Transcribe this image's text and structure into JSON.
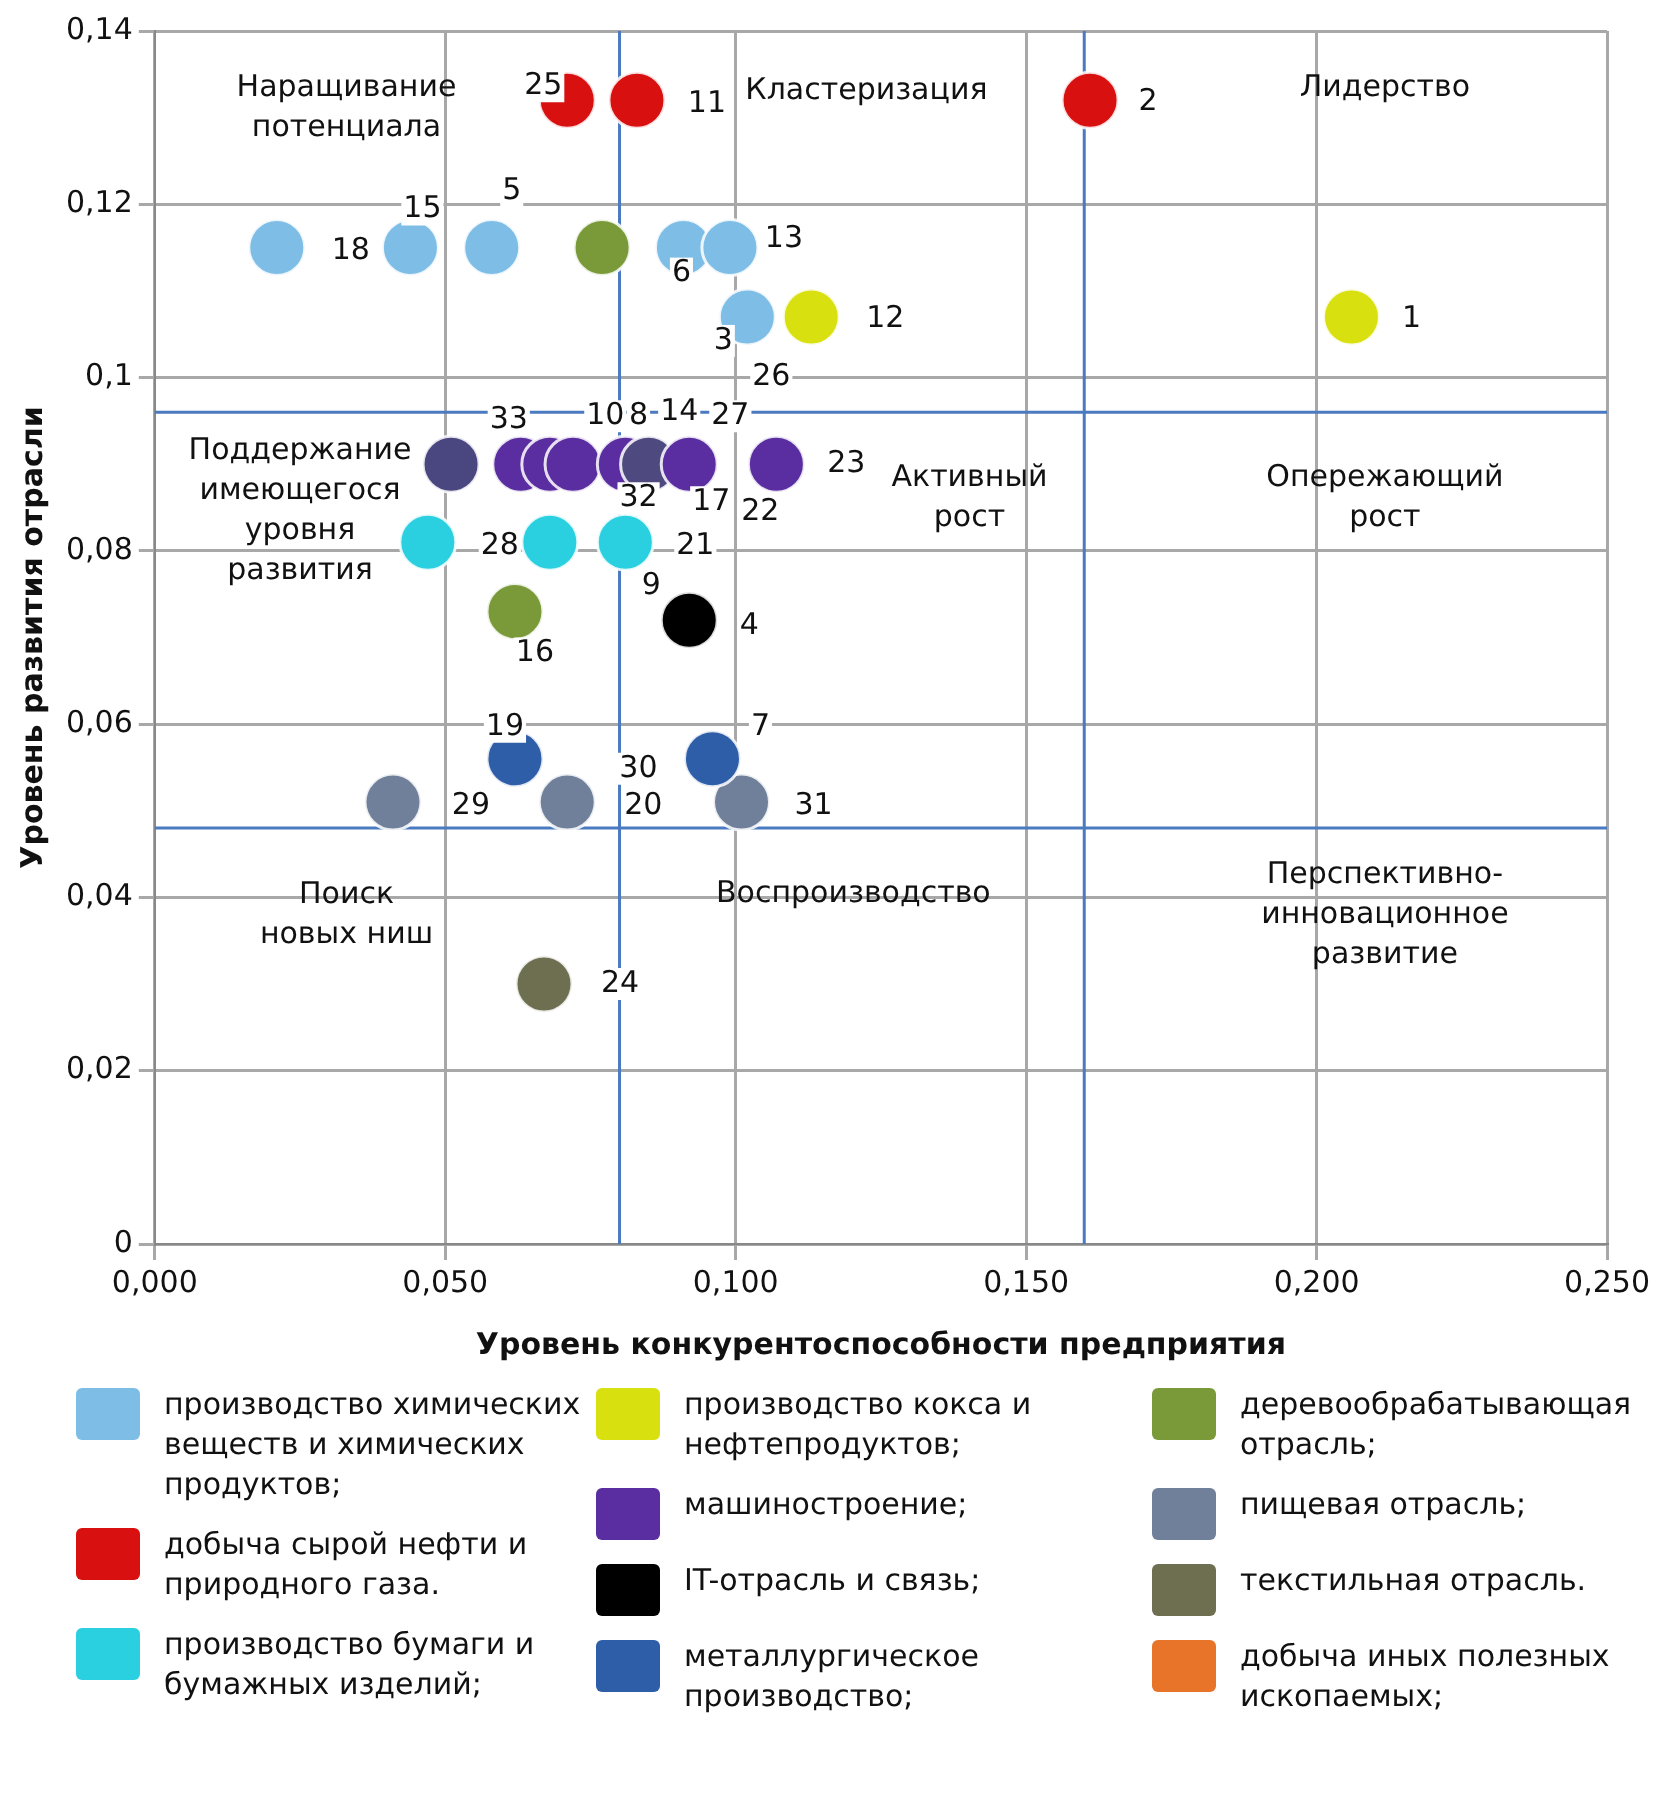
{
  "chart_data": {
    "type": "scatter",
    "xlabel": "Уровень конкурентоспособности предприятия",
    "ylabel": "Уровень развития отрасли",
    "xlim": [
      0,
      0.25
    ],
    "xticks": [
      {
        "value": 0,
        "label": "0,000"
      },
      {
        "value": 0.05,
        "label": "0,050"
      },
      {
        "value": 0.1,
        "label": "0,100"
      },
      {
        "value": 0.15,
        "label": "0,150"
      },
      {
        "value": 0.2,
        "label": "0,200"
      },
      {
        "value": 0.25,
        "label": "0,250"
      }
    ],
    "ylim": [
      0,
      0.14
    ],
    "yticks": [
      0,
      {
        "value": 0.02,
        "label": "0,02"
      },
      {
        "value": 0.04,
        "label": "0,04"
      },
      {
        "value": 0.06,
        "label": "0,06"
      },
      {
        "value": 0.08,
        "label": "0,08"
      },
      {
        "value": 0.1,
        "label": "0,1"
      },
      {
        "value": 0.12,
        "label": "0,12"
      },
      {
        "value": 0.14,
        "label": "0,14"
      }
    ],
    "grid": true,
    "legend": "bottom",
    "marker": "circle",
    "series": [
      {
        "name": "производство химических веществ и химических продуктов;",
        "color": "#7dbde6",
        "x": [
          0.021,
          0.044,
          0.058,
          0.091,
          0.099,
          0.102
        ],
        "values": [
          0.115,
          0.115,
          0.115,
          0.115,
          0.115,
          0.107
        ]
      },
      {
        "name": "добыча сырой нефти и природного газа.",
        "color": "#d81010",
        "x": [
          0.071,
          0.083,
          0.161
        ],
        "values": [
          0.132,
          0.132,
          0.132
        ]
      },
      {
        "name": "производство бумаги и бумажных изделий;",
        "color": "#2ad0e0",
        "x": [
          0.047,
          0.068,
          0.081
        ],
        "values": [
          0.081,
          0.081,
          0.081
        ]
      },
      {
        "name": "производство кокса и нефтепродуктов;",
        "color": "#d8e010",
        "x": [
          0.113,
          0.206
        ],
        "values": [
          0.107,
          0.107
        ]
      },
      {
        "name": "машиностроение;",
        "color": "#5a2ea0",
        "colors": [
          "#4a4680",
          "#5a2ea0",
          "#5a2ea0",
          "#5a2ea0",
          "#5a2ea0",
          "#4e4a80",
          "#5a2ea0",
          "#5a2ea0"
        ],
        "x": [
          0.051,
          0.063,
          0.068,
          0.072,
          0.081,
          0.085,
          0.092,
          0.107
        ],
        "values": [
          0.09,
          0.09,
          0.09,
          0.09,
          0.09,
          0.09,
          0.09,
          0.09
        ]
      },
      {
        "name": "IT-отрасль и связь;",
        "color": "#000000",
        "x": [
          0.092
        ],
        "values": [
          0.072
        ]
      },
      {
        "name": "металлургическое производство;",
        "color": "#2e5ea8",
        "x": [
          0.062,
          0.096
        ],
        "values": [
          0.056,
          0.056
        ]
      },
      {
        "name": "деревообрабатывающая отрасль;",
        "color": "#7a9a3a",
        "x": [
          0.077,
          0.062
        ],
        "values": [
          0.115,
          0.073
        ]
      },
      {
        "name": "пищевая отрасль;",
        "color": "#70809a",
        "x": [
          0.041,
          0.071,
          0.101
        ],
        "values": [
          0.051,
          0.051,
          0.051
        ]
      },
      {
        "name": "текстильная отрасль.",
        "color": "#6e6e50",
        "x": [
          0.067
        ],
        "values": [
          0.03
        ]
      },
      {
        "name": "добыча иных полезных ископаемых;",
        "color": "#e8742a"
      }
    ],
    "ref_lines": [
      {
        "axis": "x",
        "value": 0.08,
        "color": "#4a7ac0"
      },
      {
        "axis": "x",
        "value": 0.16,
        "color": "#4a7ac0"
      },
      {
        "axis": "y",
        "value": 0.096,
        "color": "#4a7ac0"
      },
      {
        "axis": "y",
        "value": 0.048,
        "color": "#4a7ac0"
      }
    ],
    "annotations": [
      "Наращивание\nпотенциала",
      "Кластеризация",
      "Лидерство",
      "Поддержание\nимеющегося\nуровня\nразвития",
      "Активный\nрост",
      "Опережающий\nрост",
      "Поиск\nновых ниш",
      "Воспроизводство",
      "Перспективно-\nинновационное\nразвитие",
      {
        "text": "18",
        "x": 0.021,
        "y": 0.115
      },
      {
        "text": "15",
        "x": 0.044,
        "y": 0.115
      },
      {
        "text": "5",
        "x": 0.058,
        "y": 0.115
      },
      {
        "text": "6",
        "x": 0.091,
        "y": 0.115
      },
      {
        "text": "13",
        "x": 0.099,
        "y": 0.115
      },
      {
        "text": "3",
        "x": 0.102,
        "y": 0.107
      },
      {
        "text": "26",
        "x": 0.102,
        "y": 0.107
      },
      {
        "text": "25",
        "x": 0.071,
        "y": 0.132
      },
      {
        "text": "11",
        "x": 0.083,
        "y": 0.132
      },
      {
        "text": "2",
        "x": 0.161,
        "y": 0.132
      },
      {
        "text": "28",
        "x": 0.047,
        "y": 0.081
      },
      {
        "text": "9",
        "x": 0.092,
        "y": 0.072
      },
      {
        "text": "21",
        "x": 0.081,
        "y": 0.081
      },
      {
        "text": "12",
        "x": 0.113,
        "y": 0.107
      },
      {
        "text": "1",
        "x": 0.206,
        "y": 0.107
      },
      {
        "text": "33",
        "x": 0.063,
        "y": 0.09
      },
      {
        "text": "10",
        "x": 0.081,
        "y": 0.09
      },
      {
        "text": "8",
        "x": 0.085,
        "y": 0.09
      },
      {
        "text": "14",
        "x": 0.092,
        "y": 0.09
      },
      {
        "text": "27",
        "x": 0.107,
        "y": 0.09
      },
      {
        "text": "32",
        "x": 0.085,
        "y": 0.09
      },
      {
        "text": "17",
        "x": 0.092,
        "y": 0.09
      },
      {
        "text": "22",
        "x": 0.107,
        "y": 0.09
      },
      {
        "text": "23",
        "x": 0.107,
        "y": 0.09
      },
      {
        "text": "4",
        "x": 0.092,
        "y": 0.072
      },
      {
        "text": "19",
        "x": 0.062,
        "y": 0.056
      },
      {
        "text": "7",
        "x": 0.096,
        "y": 0.056
      },
      {
        "text": "30",
        "x": 0.096,
        "y": 0.056
      },
      {
        "text": "16",
        "x": 0.062,
        "y": 0.073
      },
      {
        "text": "29",
        "x": 0.041,
        "y": 0.051
      },
      {
        "text": "20",
        "x": 0.071,
        "y": 0.051
      },
      {
        "text": "31",
        "x": 0.101,
        "y": 0.051
      },
      {
        "text": "24",
        "x": 0.067,
        "y": 0.03
      }
    ]
  }
}
